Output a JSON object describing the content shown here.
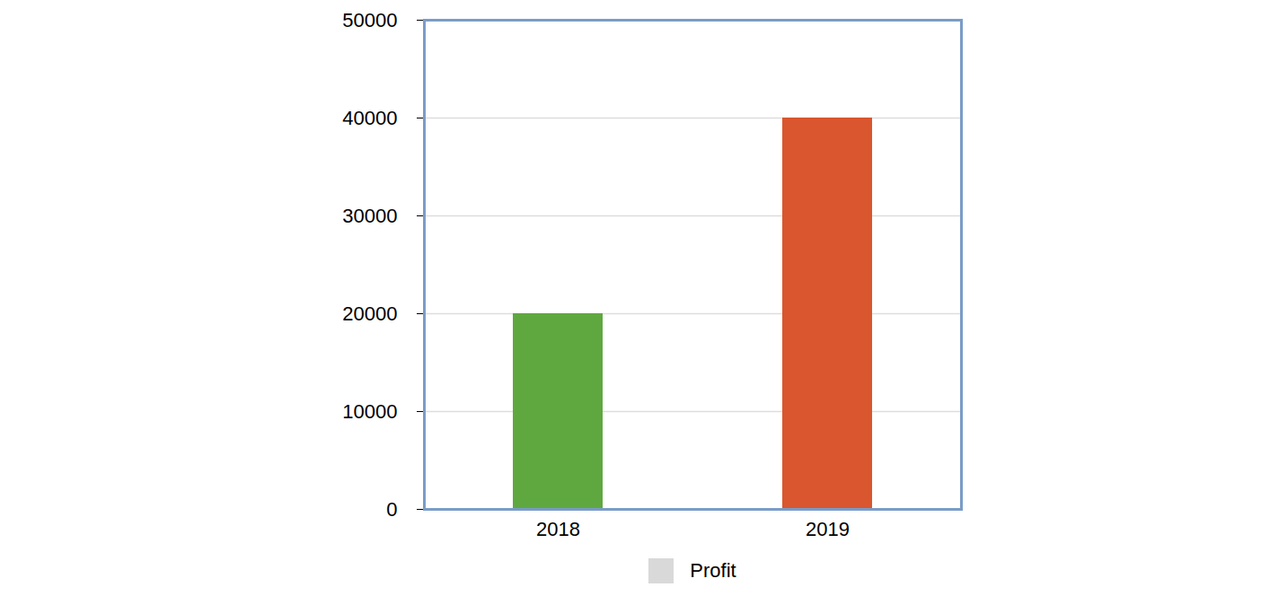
{
  "chart_data": {
    "type": "bar",
    "categories": [
      "2018",
      "2019"
    ],
    "series": [
      {
        "name": "Profit",
        "color": "#d9d9d9",
        "values": [
          20000,
          40000
        ]
      }
    ],
    "colors": [
      "#5fa83f",
      "#d9562e"
    ],
    "ylim": [
      0,
      50000
    ],
    "yticks": [
      0,
      10000,
      20000,
      30000,
      40000,
      50000
    ],
    "grid": true,
    "legend": "bottom"
  }
}
